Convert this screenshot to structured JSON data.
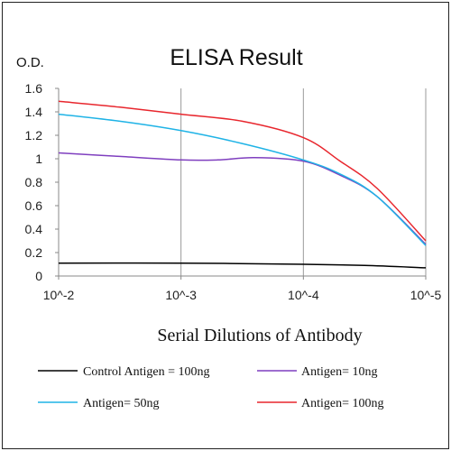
{
  "chart_data": {
    "type": "line",
    "title": "ELISA Result",
    "ylabel": "O.D.",
    "xlabel": "Serial Dilutions  of Antibody",
    "x_categories": [
      "10^-2",
      "10^-3",
      "10^-4",
      "10^-5"
    ],
    "ylim": [
      0,
      1.6
    ],
    "yticks": [
      "0",
      "0.2",
      "0.4",
      "0.6",
      "0.8",
      "1",
      "1.2",
      "1.4",
      "1.6"
    ],
    "grid": "vertical",
    "legend_position": "bottom",
    "series": [
      {
        "name": "Control Antigen = 100ng",
        "color": "#000000",
        "points": [
          [
            0,
            0.11
          ],
          [
            1,
            0.11
          ],
          [
            2,
            0.1
          ],
          [
            2.5,
            0.09
          ],
          [
            3,
            0.07
          ]
        ]
      },
      {
        "name": "Antigen= 10ng",
        "color": "#7f3fbf",
        "points": [
          [
            0,
            1.05
          ],
          [
            0.5,
            1.02
          ],
          [
            1,
            0.99
          ],
          [
            1.3,
            0.99
          ],
          [
            1.6,
            1.01
          ],
          [
            2,
            0.98
          ],
          [
            2.3,
            0.86
          ],
          [
            2.6,
            0.68
          ],
          [
            3,
            0.27
          ]
        ]
      },
      {
        "name": "Antigen= 50ng",
        "color": "#1fb3e6",
        "points": [
          [
            0,
            1.38
          ],
          [
            0.5,
            1.32
          ],
          [
            1,
            1.24
          ],
          [
            1.5,
            1.13
          ],
          [
            2,
            0.99
          ],
          [
            2.3,
            0.87
          ],
          [
            2.6,
            0.68
          ],
          [
            3,
            0.26
          ]
        ]
      },
      {
        "name": "Antigen= 100ng",
        "color": "#e8262d",
        "points": [
          [
            0,
            1.49
          ],
          [
            0.5,
            1.44
          ],
          [
            1,
            1.38
          ],
          [
            1.5,
            1.32
          ],
          [
            2,
            1.18
          ],
          [
            2.3,
            0.98
          ],
          [
            2.6,
            0.75
          ],
          [
            3,
            0.3
          ]
        ]
      }
    ]
  }
}
